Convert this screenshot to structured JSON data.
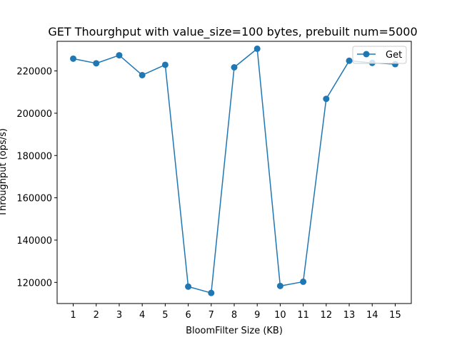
{
  "chart_data": {
    "type": "line",
    "title": "GET Thourghput with value_size=100 bytes, prebuilt num=5000",
    "xlabel": "BloomFilter Size (KB)",
    "ylabel": "Throughput (ops/s)",
    "x": [
      1,
      2,
      3,
      4,
      5,
      6,
      7,
      8,
      9,
      10,
      11,
      12,
      13,
      14,
      15
    ],
    "x_ticks": [
      "1",
      "2",
      "3",
      "4",
      "5",
      "6",
      "7",
      "8",
      "9",
      "10",
      "11",
      "12",
      "13",
      "14",
      "15"
    ],
    "y_ticks": [
      120000,
      140000,
      160000,
      180000,
      200000,
      220000
    ],
    "y_tick_labels": [
      "120000",
      "140000",
      "160000",
      "180000",
      "200000",
      "220000"
    ],
    "xlim": [
      0.3,
      15.7
    ],
    "ylim": [
      110000,
      234000
    ],
    "grid": false,
    "legend_position": "upper-right",
    "series": [
      {
        "name": "Get",
        "color": "#1f77b4",
        "marker": "circle",
        "values": [
          225800,
          223600,
          227400,
          218000,
          222900,
          118000,
          115000,
          221700,
          230500,
          118300,
          120300,
          206800,
          224800,
          223800,
          223200
        ]
      }
    ]
  }
}
